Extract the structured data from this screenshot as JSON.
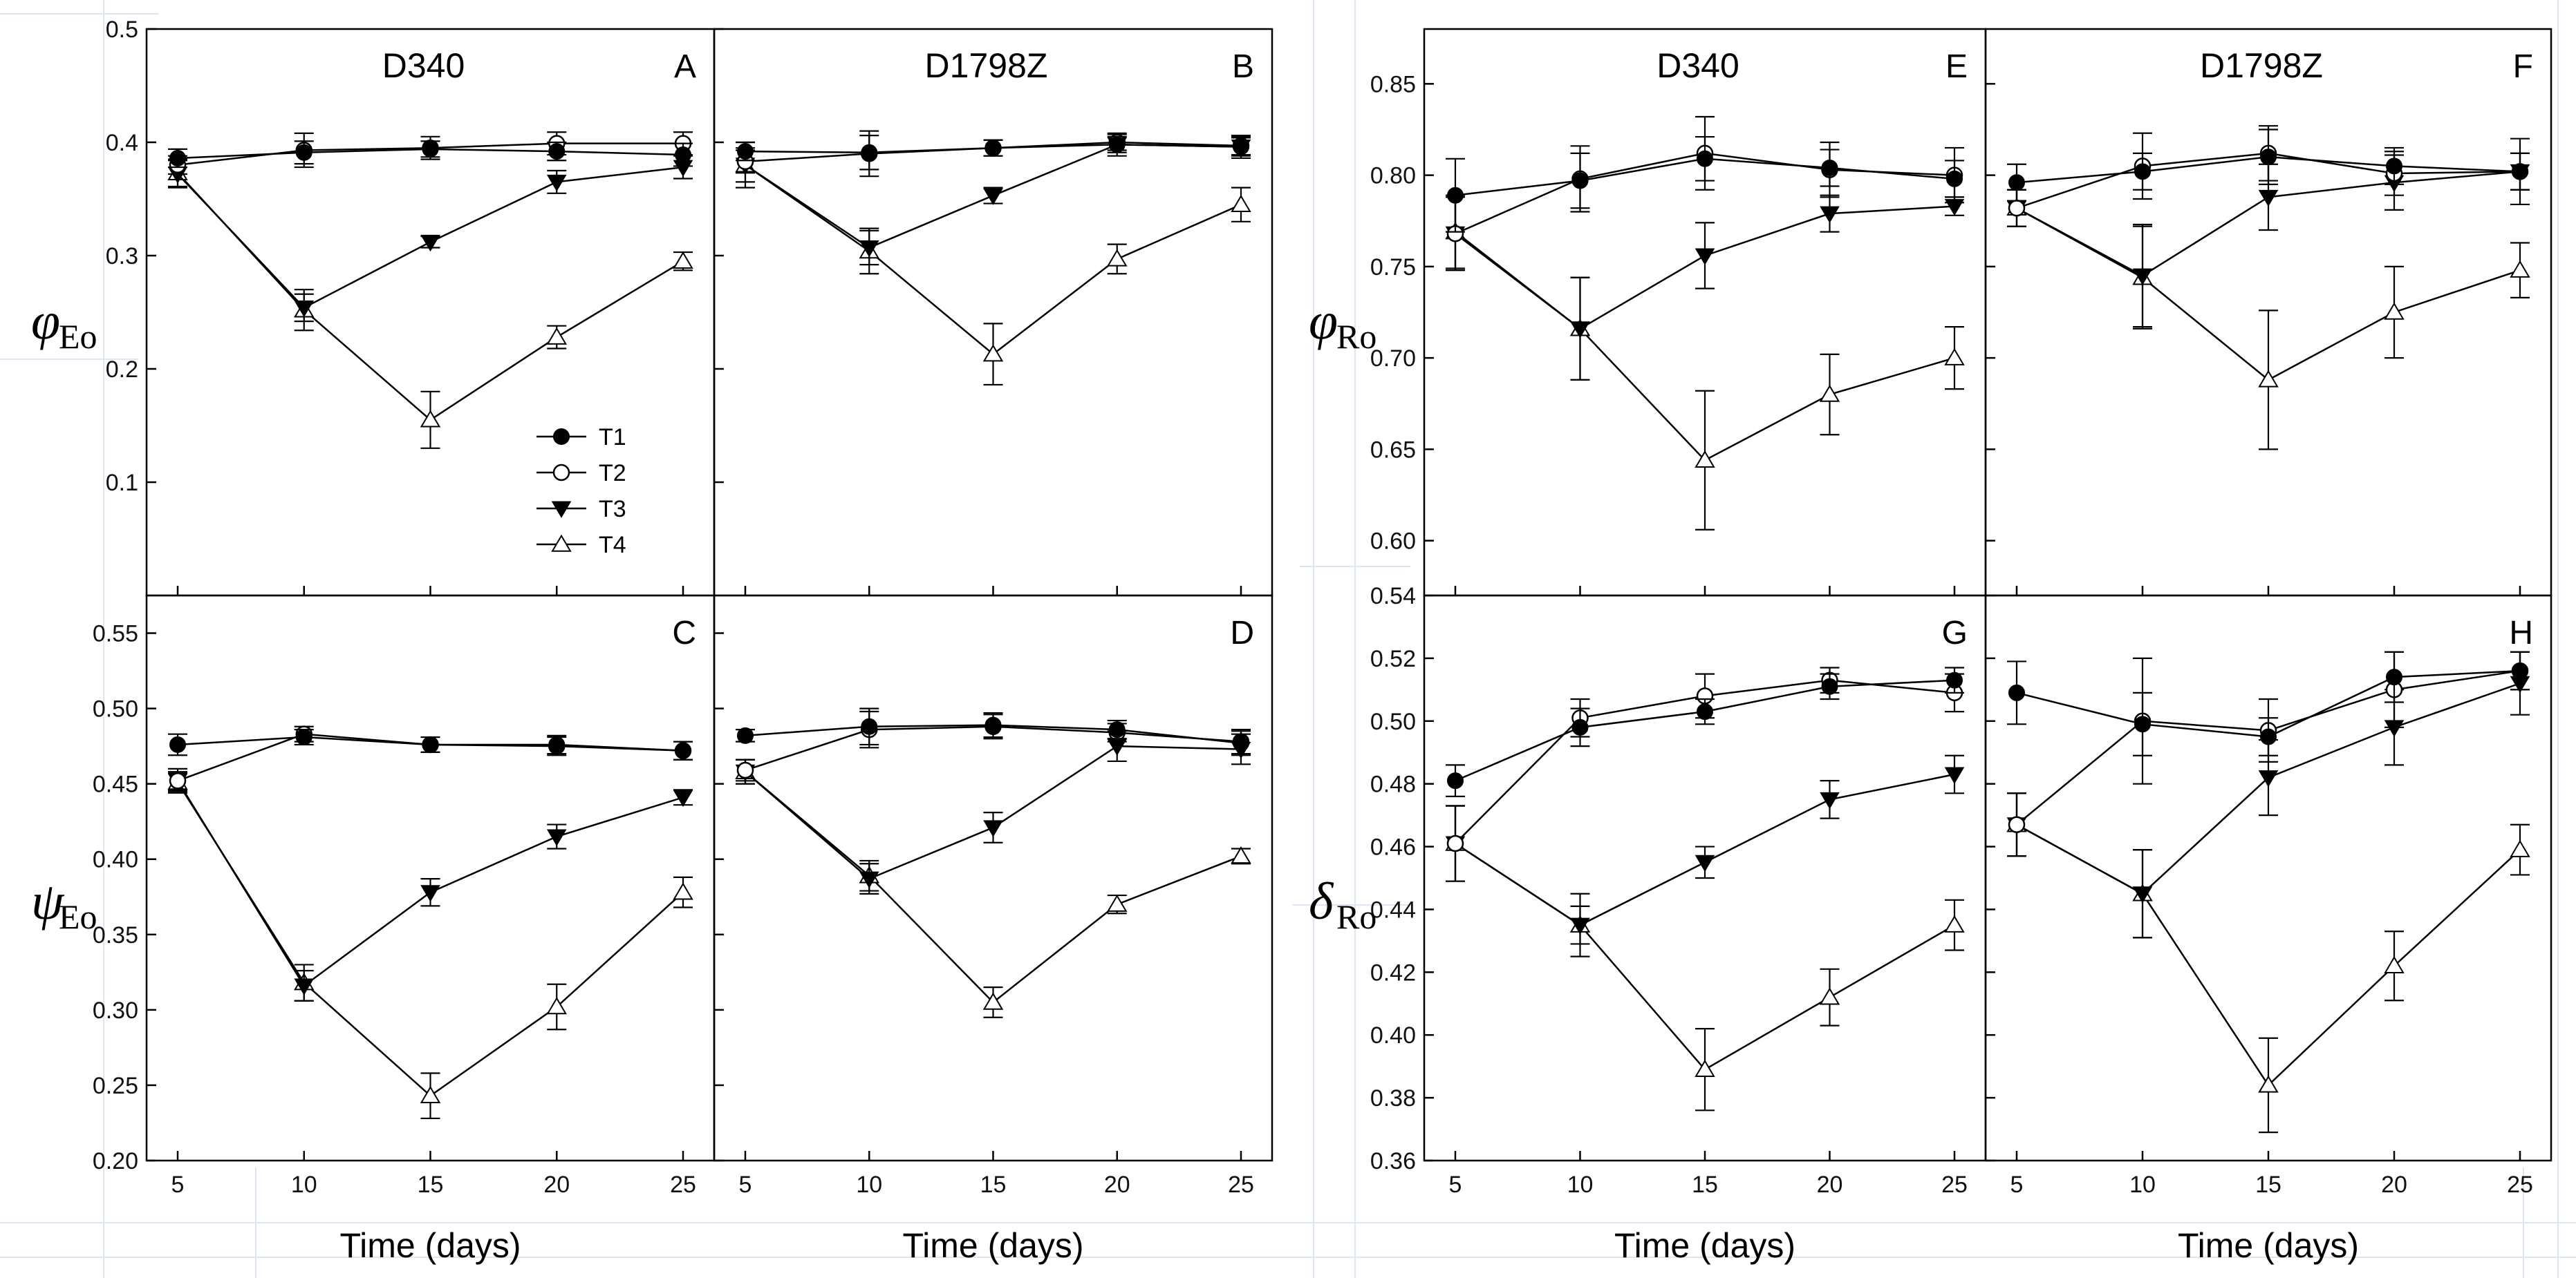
{
  "chart_data": {
    "type": "line",
    "x": [
      5,
      10,
      15,
      20,
      25
    ],
    "xlabel": "Time (days)",
    "series_names": [
      "T1",
      "T2",
      "T3",
      "T4"
    ],
    "legend": {
      "position": "panel A, lower middle",
      "entries": [
        "T1",
        "T2",
        "T3",
        "T4"
      ]
    },
    "groups": [
      {
        "ylabel_symbol": "φ",
        "ylabel_sub": "Eo",
        "ylim": [
          0,
          0.5
        ],
        "yticks": [
          0.1,
          0.2,
          0.3,
          0.4,
          0.5
        ],
        "ytick_labels": [
          "0.1",
          "0.2",
          "0.3",
          "0.4",
          "0.5"
        ],
        "panels": [
          {
            "letter": "A",
            "title": "D340",
            "series": [
              {
                "name": "T1",
                "values": [
                  0.386,
                  0.391,
                  0.394,
                  0.392,
                  0.389
                ],
                "errors": [
                  0.008,
                  0.01,
                  0.007,
                  0.008,
                  0.01
                ]
              },
              {
                "name": "T2",
                "values": [
                  0.38,
                  0.393,
                  0.395,
                  0.399,
                  0.399
                ],
                "errors": [
                  0.008,
                  0.015,
                  0.01,
                  0.01,
                  0.01
                ]
              },
              {
                "name": "T3",
                "values": [
                  0.372,
                  0.254,
                  0.312,
                  0.365,
                  0.378
                ],
                "errors": [
                  0.012,
                  0.012,
                  0.005,
                  0.01,
                  0.01
                ]
              },
              {
                "name": "T4",
                "values": [
                  0.373,
                  0.252,
                  0.155,
                  0.228,
                  0.295
                ],
                "errors": [
                  0.012,
                  0.018,
                  0.025,
                  0.01,
                  0.008
                ]
              }
            ]
          },
          {
            "letter": "B",
            "title": "D1798Z",
            "series": [
              {
                "name": "T1",
                "values": [
                  0.392,
                  0.391,
                  0.395,
                  0.398,
                  0.396
                ],
                "errors": [
                  0.008,
                  0.015,
                  0.007,
                  0.007,
                  0.008
                ]
              },
              {
                "name": "T2",
                "values": [
                  0.383,
                  0.39,
                  0.395,
                  0.4,
                  0.397
                ],
                "errors": [
                  0.01,
                  0.02,
                  0.007,
                  0.007,
                  0.008
                ]
              },
              {
                "name": "T3",
                "values": [
                  0.38,
                  0.307,
                  0.353,
                  0.398,
                  0.396
                ],
                "errors": [
                  0.015,
                  0.015,
                  0.007,
                  0.01,
                  0.01
                ]
              },
              {
                "name": "T4",
                "values": [
                  0.38,
                  0.304,
                  0.213,
                  0.297,
                  0.345
                ],
                "errors": [
                  0.02,
                  0.02,
                  0.027,
                  0.013,
                  0.015
                ]
              }
            ]
          }
        ]
      },
      {
        "ylabel_symbol": "ψ",
        "ylabel_sub": "Eo",
        "ylim": [
          0.2,
          0.575
        ],
        "yticks": [
          0.2,
          0.25,
          0.3,
          0.35,
          0.4,
          0.45,
          0.5,
          0.55
        ],
        "ytick_labels": [
          "0.20",
          "0.25",
          "0.30",
          "0.35",
          "0.40",
          "0.45",
          "0.50",
          "0.55"
        ],
        "panels": [
          {
            "letter": "C",
            "title": "",
            "series": [
              {
                "name": "T1",
                "values": [
                  0.476,
                  0.481,
                  0.476,
                  0.476,
                  0.472
                ],
                "errors": [
                  0.007,
                  0.005,
                  0.005,
                  0.006,
                  0.006
                ]
              },
              {
                "name": "T2",
                "values": [
                  0.452,
                  0.483,
                  0.476,
                  0.475,
                  0.472
                ],
                "errors": [
                  0.008,
                  0.005,
                  0.005,
                  0.006,
                  0.006
                ]
              },
              {
                "name": "T3",
                "values": [
                  0.452,
                  0.316,
                  0.378,
                  0.415,
                  0.441
                ],
                "errors": [
                  0.006,
                  0.01,
                  0.009,
                  0.008,
                  0.005
                ]
              },
              {
                "name": "T4",
                "values": [
                  0.451,
                  0.318,
                  0.243,
                  0.302,
                  0.378
                ],
                "errors": [
                  0.006,
                  0.012,
                  0.015,
                  0.015,
                  0.01
                ]
              }
            ]
          },
          {
            "letter": "D",
            "title": "",
            "series": [
              {
                "name": "T1",
                "values": [
                  0.482,
                  0.488,
                  0.489,
                  0.486,
                  0.477
                ],
                "errors": [
                  0.004,
                  0.012,
                  0.008,
                  0.006,
                  0.008
                ]
              },
              {
                "name": "T2",
                "values": [
                  0.459,
                  0.486,
                  0.488,
                  0.484,
                  0.478
                ],
                "errors": [
                  0.007,
                  0.012,
                  0.008,
                  0.006,
                  0.008
                ]
              },
              {
                "name": "T3",
                "values": [
                  0.458,
                  0.387,
                  0.421,
                  0.475,
                  0.473
                ],
                "errors": [
                  0.008,
                  0.01,
                  0.01,
                  0.01,
                  0.01
                ]
              },
              {
                "name": "T4",
                "values": [
                  0.458,
                  0.389,
                  0.305,
                  0.37,
                  0.402
                ],
                "errors": [
                  0.008,
                  0.01,
                  0.01,
                  0.006,
                  0.005
                ]
              }
            ]
          }
        ]
      },
      {
        "ylabel_symbol": "φ",
        "ylabel_sub": "Ro",
        "ylim": [
          0.57,
          0.88
        ],
        "yticks": [
          0.6,
          0.65,
          0.7,
          0.75,
          0.8,
          0.85
        ],
        "ytick_labels": [
          "0.60",
          "0.65",
          "0.70",
          "0.75",
          "0.80",
          "0.85"
        ],
        "panels": [
          {
            "letter": "E",
            "title": "D340",
            "series": [
              {
                "name": "T1",
                "values": [
                  0.789,
                  0.797,
                  0.809,
                  0.804,
                  0.798
                ],
                "errors": [
                  0.02,
                  0.015,
                  0.012,
                  0.01,
                  0.01
                ]
              },
              {
                "name": "T2",
                "values": [
                  0.768,
                  0.798,
                  0.812,
                  0.803,
                  0.8
                ],
                "errors": [
                  0.02,
                  0.018,
                  0.02,
                  0.015,
                  0.015
                ]
              },
              {
                "name": "T3",
                "values": [
                  0.768,
                  0.716,
                  0.756,
                  0.779,
                  0.783
                ],
                "errors": [
                  0.02,
                  0.028,
                  0.018,
                  0.01,
                  0.005
                ]
              },
              {
                "name": "T4",
                "values": [
                  0.769,
                  0.716,
                  0.644,
                  0.68,
                  0.7
                ],
                "errors": [
                  0.02,
                  0.028,
                  0.038,
                  0.022,
                  0.017
                ]
              }
            ]
          },
          {
            "letter": "F",
            "title": "D1798Z",
            "series": [
              {
                "name": "T1",
                "values": [
                  0.796,
                  0.802,
                  0.81,
                  0.805,
                  0.802
                ],
                "errors": [
                  0.01,
                  0.01,
                  0.015,
                  0.01,
                  0.01
                ]
              },
              {
                "name": "T2",
                "values": [
                  0.782,
                  0.805,
                  0.812,
                  0.801,
                  0.802
                ],
                "errors": [
                  0.01,
                  0.018,
                  0.015,
                  0.012,
                  0.018
                ]
              },
              {
                "name": "T3",
                "values": [
                  0.782,
                  0.745,
                  0.788,
                  0.796,
                  0.802
                ],
                "errors": [
                  0.01,
                  0.028,
                  0.018,
                  0.015,
                  0.01
                ]
              },
              {
                "name": "T4",
                "values": [
                  0.782,
                  0.744,
                  0.688,
                  0.725,
                  0.748
                ],
                "errors": [
                  0.01,
                  0.028,
                  0.038,
                  0.025,
                  0.015
                ]
              }
            ]
          }
        ]
      },
      {
        "ylabel_symbol": "δ",
        "ylabel_sub": "Ro",
        "ylim": [
          0.36,
          0.54
        ],
        "yticks": [
          0.36,
          0.38,
          0.4,
          0.42,
          0.44,
          0.46,
          0.48,
          0.5,
          0.52,
          0.54
        ],
        "ytick_labels": [
          "0.36",
          "0.38",
          "0.40",
          "0.42",
          "0.44",
          "0.46",
          "0.48",
          "0.50",
          "0.52",
          "0.54"
        ],
        "panels": [
          {
            "letter": "G",
            "title": "",
            "series": [
              {
                "name": "T1",
                "values": [
                  0.481,
                  0.498,
                  0.503,
                  0.511,
                  0.513
                ],
                "errors": [
                  0.005,
                  0.006,
                  0.004,
                  0.004,
                  0.004
                ]
              },
              {
                "name": "T2",
                "values": [
                  0.461,
                  0.501,
                  0.508,
                  0.513,
                  0.509
                ],
                "errors": [
                  0.012,
                  0.006,
                  0.007,
                  0.004,
                  0.006
                ]
              },
              {
                "name": "T3",
                "values": [
                  0.461,
                  0.435,
                  0.455,
                  0.475,
                  0.483
                ],
                "errors": [
                  0.012,
                  0.006,
                  0.005,
                  0.006,
                  0.006
                ]
              },
              {
                "name": "T4",
                "values": [
                  0.461,
                  0.435,
                  0.389,
                  0.412,
                  0.435
                ],
                "errors": [
                  0.012,
                  0.01,
                  0.013,
                  0.009,
                  0.008
                ]
              }
            ]
          },
          {
            "letter": "H",
            "title": "",
            "series": [
              {
                "name": "T1",
                "values": [
                  0.509,
                  0.499,
                  0.495,
                  0.514,
                  0.516
                ],
                "errors": [
                  0.01,
                  0.01,
                  0.006,
                  0.008,
                  0.006
                ]
              },
              {
                "name": "T2",
                "values": [
                  0.467,
                  0.5,
                  0.497,
                  0.51,
                  0.516
                ],
                "errors": [
                  0.01,
                  0.02,
                  0.01,
                  0.012,
                  0.006
                ]
              },
              {
                "name": "T3",
                "values": [
                  0.467,
                  0.445,
                  0.482,
                  0.498,
                  0.512
                ],
                "errors": [
                  0.01,
                  0.014,
                  0.012,
                  0.012,
                  0.01
                ]
              },
              {
                "name": "T4",
                "values": [
                  0.467,
                  0.445,
                  0.384,
                  0.422,
                  0.459
                ],
                "errors": [
                  0.01,
                  0.014,
                  0.015,
                  0.011,
                  0.008
                ]
              }
            ]
          }
        ]
      }
    ]
  }
}
